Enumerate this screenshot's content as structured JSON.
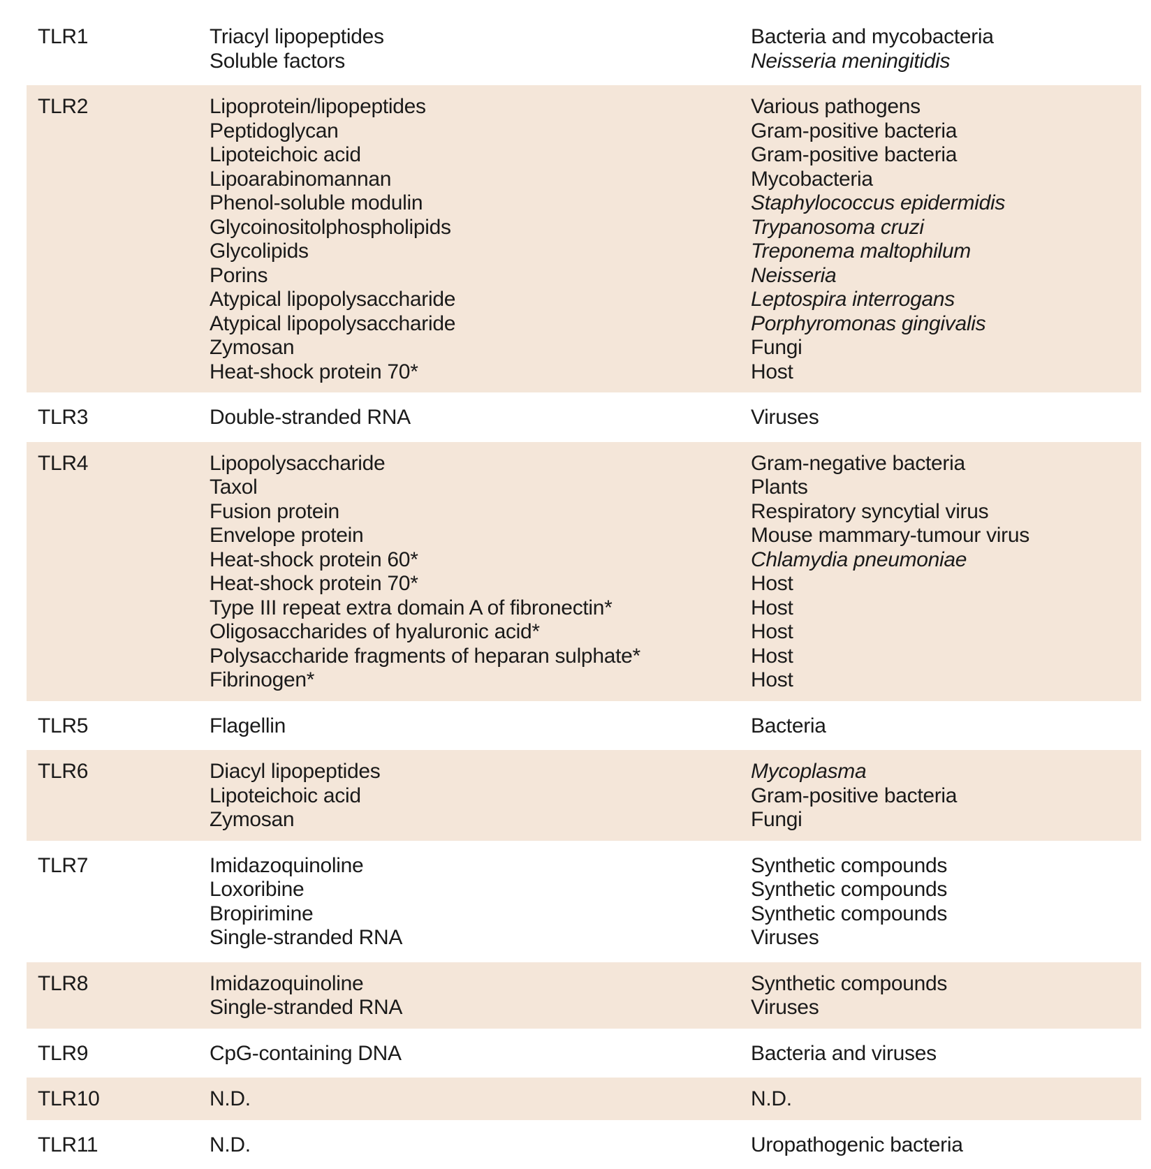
{
  "rows": [
    {
      "receptor": "TLR1",
      "shaded": false,
      "entries": [
        {
          "ligand": "Triacyl lipopeptides",
          "origin": "Bacteria and mycobacteria",
          "italic": false
        },
        {
          "ligand": "Soluble factors",
          "origin": "Neisseria meningitidis",
          "italic": true
        }
      ]
    },
    {
      "receptor": "TLR2",
      "shaded": true,
      "entries": [
        {
          "ligand": "Lipoprotein/lipopeptides",
          "origin": "Various pathogens",
          "italic": false
        },
        {
          "ligand": "Peptidoglycan",
          "origin": "Gram-positive bacteria",
          "italic": false
        },
        {
          "ligand": "Lipoteichoic acid",
          "origin": "Gram-positive bacteria",
          "italic": false
        },
        {
          "ligand": "Lipoarabinomannan",
          "origin": "Mycobacteria",
          "italic": false
        },
        {
          "ligand": "Phenol-soluble modulin",
          "origin": "Staphylococcus epidermidis",
          "italic": true
        },
        {
          "ligand": "Glycoinositolphospholipids",
          "origin": "Trypanosoma cruzi",
          "italic": true
        },
        {
          "ligand": "Glycolipids",
          "origin": "Treponema maltophilum",
          "italic": true
        },
        {
          "ligand": "Porins",
          "origin": "Neisseria",
          "italic": true
        },
        {
          "ligand": "Atypical lipopolysaccharide",
          "origin": "Leptospira interrogans",
          "italic": true
        },
        {
          "ligand": "Atypical lipopolysaccharide",
          "origin": "Porphyromonas gingivalis",
          "italic": true
        },
        {
          "ligand": "Zymosan",
          "origin": "Fungi",
          "italic": false
        },
        {
          "ligand": "Heat-shock protein 70*",
          "origin": "Host",
          "italic": false
        }
      ]
    },
    {
      "receptor": "TLR3",
      "shaded": false,
      "entries": [
        {
          "ligand": "Double-stranded RNA",
          "origin": "Viruses",
          "italic": false
        }
      ]
    },
    {
      "receptor": "TLR4",
      "shaded": true,
      "entries": [
        {
          "ligand": "Lipopolysaccharide",
          "origin": "Gram-negative bacteria",
          "italic": false
        },
        {
          "ligand": "Taxol",
          "origin": "Plants",
          "italic": false
        },
        {
          "ligand": "Fusion protein",
          "origin": "Respiratory syncytial virus",
          "italic": false
        },
        {
          "ligand": "Envelope protein",
          "origin": "Mouse mammary-tumour virus",
          "italic": false
        },
        {
          "ligand": "Heat-shock protein 60*",
          "origin": "Chlamydia pneumoniae",
          "italic": true
        },
        {
          "ligand": "Heat-shock protein 70*",
          "origin": "Host",
          "italic": false
        },
        {
          "ligand": "Type III repeat extra domain A of fibronectin*",
          "origin": "Host",
          "italic": false
        },
        {
          "ligand": "Oligosaccharides of hyaluronic acid*",
          "origin": "Host",
          "italic": false
        },
        {
          "ligand": "Polysaccharide fragments of heparan sulphate*",
          "origin": "Host",
          "italic": false
        },
        {
          "ligand": "Fibrinogen*",
          "origin": "Host",
          "italic": false
        }
      ]
    },
    {
      "receptor": "TLR5",
      "shaded": false,
      "entries": [
        {
          "ligand": "Flagellin",
          "origin": "Bacteria",
          "italic": false
        }
      ]
    },
    {
      "receptor": "TLR6",
      "shaded": true,
      "entries": [
        {
          "ligand": "Diacyl lipopeptides",
          "origin": "Mycoplasma",
          "italic": true
        },
        {
          "ligand": "Lipoteichoic acid",
          "origin": "Gram-positive bacteria",
          "italic": false
        },
        {
          "ligand": "Zymosan",
          "origin": "Fungi",
          "italic": false
        }
      ]
    },
    {
      "receptor": "TLR7",
      "shaded": false,
      "entries": [
        {
          "ligand": "Imidazoquinoline",
          "origin": "Synthetic compounds",
          "italic": false
        },
        {
          "ligand": "Loxoribine",
          "origin": "Synthetic compounds",
          "italic": false
        },
        {
          "ligand": "Bropirimine",
          "origin": "Synthetic compounds",
          "italic": false
        },
        {
          "ligand": "Single-stranded RNA",
          "origin": "Viruses",
          "italic": false
        }
      ]
    },
    {
      "receptor": "TLR8",
      "shaded": true,
      "entries": [
        {
          "ligand": "Imidazoquinoline",
          "origin": "Synthetic compounds",
          "italic": false
        },
        {
          "ligand": "Single-stranded RNA",
          "origin": "Viruses",
          "italic": false
        }
      ]
    },
    {
      "receptor": "TLR9",
      "shaded": false,
      "entries": [
        {
          "ligand": "CpG-containing DNA",
          "origin": "Bacteria and viruses",
          "italic": false
        }
      ]
    },
    {
      "receptor": "TLR10",
      "shaded": true,
      "entries": [
        {
          "ligand": "N.D.",
          "origin": "N.D.",
          "italic": false
        }
      ]
    },
    {
      "receptor": "TLR11",
      "shaded": false,
      "entries": [
        {
          "ligand": "N.D.",
          "origin": "Uropathogenic bacteria",
          "italic": false
        }
      ]
    }
  ]
}
